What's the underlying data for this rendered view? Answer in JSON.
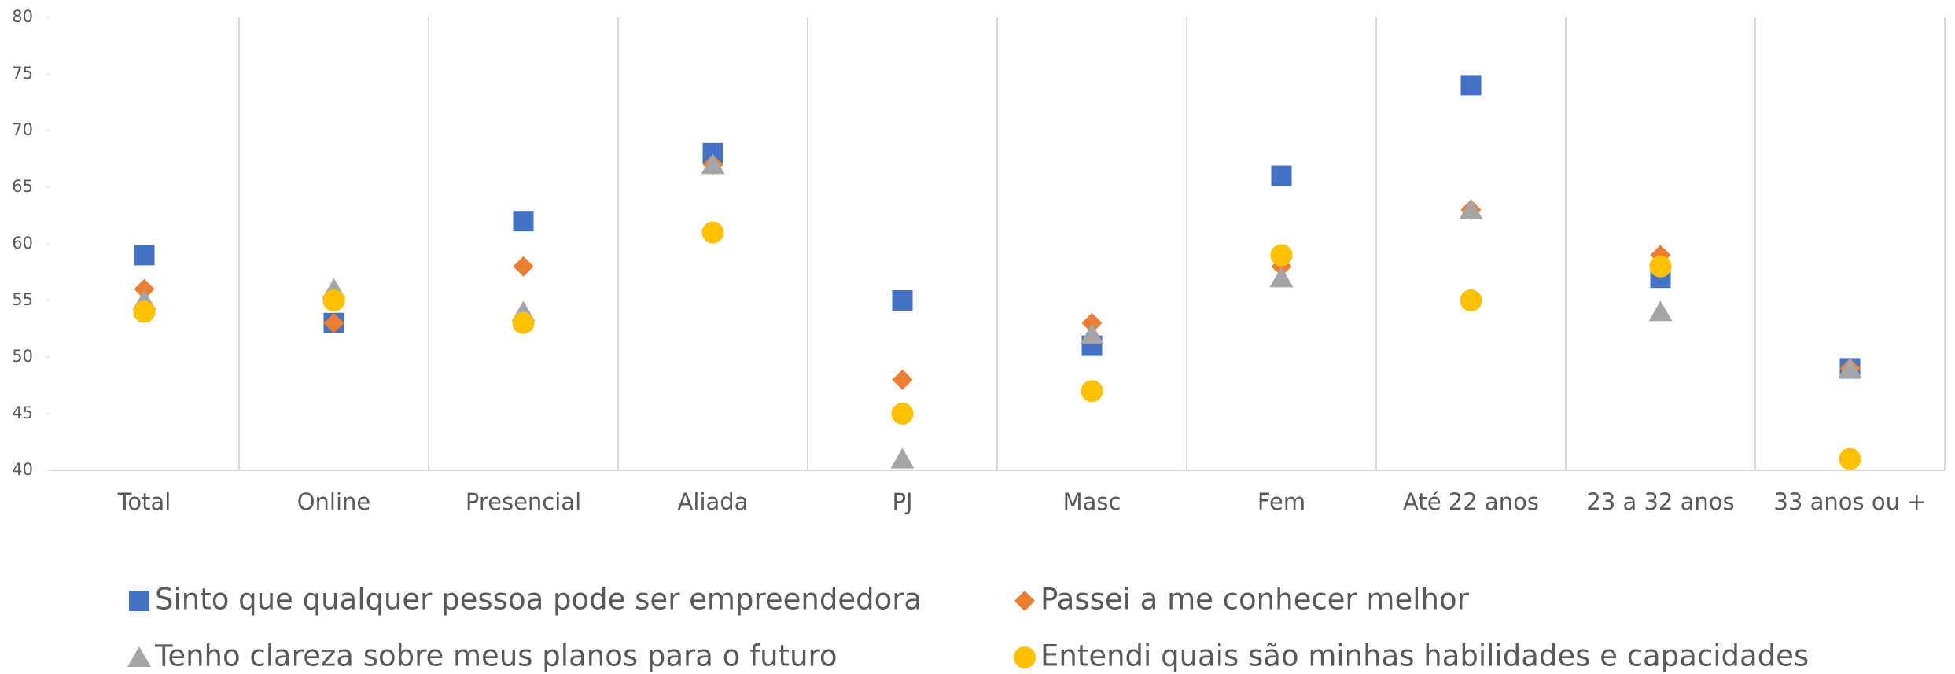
{
  "chart_data": {
    "type": "scatter",
    "categories": [
      "Total",
      "Online",
      "Presencial",
      "Aliada",
      "PJ",
      "Masc",
      "Fem",
      "Até 22 anos",
      "23 a 32 anos",
      "33 anos ou +"
    ],
    "series": [
      {
        "name": "Sinto que qualquer pessoa pode ser empreendedora",
        "color": "#4472c4",
        "marker": "square",
        "values": [
          59,
          53,
          62,
          68,
          55,
          51,
          66,
          74,
          57,
          49
        ]
      },
      {
        "name": "Passei a me conhecer melhor",
        "color": "#ed7d31",
        "marker": "diamond",
        "values": [
          56,
          53,
          58,
          67,
          48,
          53,
          58,
          63,
          59,
          49
        ]
      },
      {
        "name": "Tenho clareza sobre meus planos para o futuro",
        "color": "#a5a5a5",
        "marker": "triangle",
        "values": [
          55,
          56,
          54,
          67,
          41,
          52,
          57,
          63,
          54,
          49
        ]
      },
      {
        "name": "Entendi quais são minhas habilidades e capacidades",
        "color": "#ffc000",
        "marker": "circle",
        "values": [
          54,
          55,
          53,
          61,
          45,
          47,
          59,
          55,
          58,
          41
        ]
      }
    ],
    "ylim": [
      40,
      80
    ],
    "yticks": [
      40,
      45,
      50,
      55,
      60,
      65,
      70,
      75,
      80
    ]
  }
}
